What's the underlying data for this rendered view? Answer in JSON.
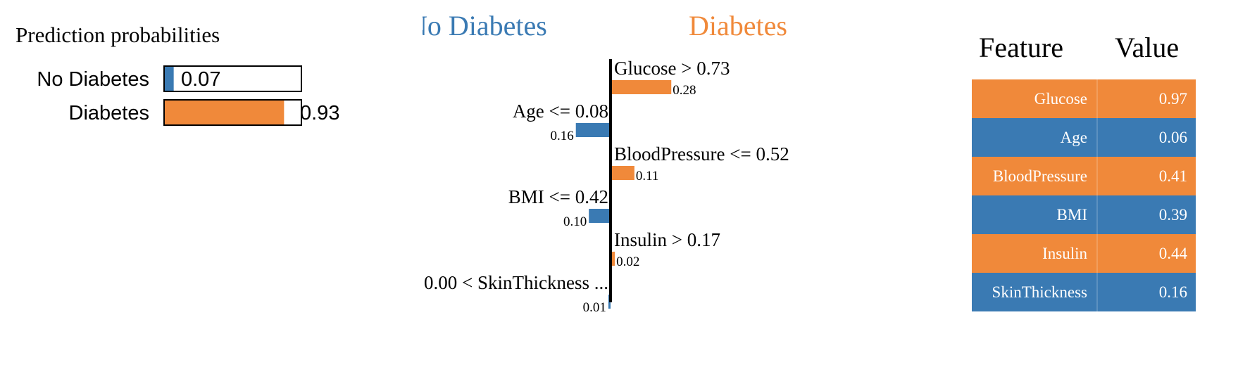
{
  "prediction": {
    "title": "Prediction probabilities",
    "bars": [
      {
        "label": "No Diabetes",
        "value": 0.07,
        "value_label": "0.07",
        "color": "#3a7ab3"
      },
      {
        "label": "Diabetes",
        "value": 0.93,
        "value_label": "0.93",
        "color": "#f0893a"
      }
    ]
  },
  "explanation": {
    "negative_class": "No Diabetes",
    "positive_class": "Diabetes",
    "negative_color": "#3a7ab3",
    "positive_color": "#f0893a",
    "features": [
      {
        "label": "Glucose > 0.73",
        "weight": 0.28,
        "weight_label": "0.28",
        "side": "positive"
      },
      {
        "label": "Age <= 0.08",
        "weight": 0.16,
        "weight_label": "0.16",
        "side": "negative"
      },
      {
        "label": "BloodPressure <= 0.52",
        "weight": 0.11,
        "weight_label": "0.11",
        "side": "positive"
      },
      {
        "label": "BMI <= 0.42",
        "weight": 0.1,
        "weight_label": "0.10",
        "side": "negative"
      },
      {
        "label": "Insulin > 0.17",
        "weight": 0.02,
        "weight_label": "0.02",
        "side": "positive"
      },
      {
        "label": "0.00 < SkinThickness ...",
        "weight": 0.01,
        "weight_label": "0.01",
        "side": "negative"
      }
    ]
  },
  "table": {
    "headers": [
      "Feature",
      "Value"
    ],
    "rows": [
      {
        "feature": "Glucose",
        "value": "0.97",
        "side": "positive"
      },
      {
        "feature": "Age",
        "value": "0.06",
        "side": "negative"
      },
      {
        "feature": "BloodPressure",
        "value": "0.41",
        "side": "positive"
      },
      {
        "feature": "BMI",
        "value": "0.39",
        "side": "negative"
      },
      {
        "feature": "Insulin",
        "value": "0.44",
        "side": "positive"
      },
      {
        "feature": "SkinThickness",
        "value": "0.16",
        "side": "negative"
      }
    ]
  },
  "chart_data": [
    {
      "type": "bar",
      "title": "Prediction probabilities",
      "categories": [
        "No Diabetes",
        "Diabetes"
      ],
      "values": [
        0.07,
        0.93
      ],
      "ylim": [
        0,
        1
      ]
    },
    {
      "type": "bar",
      "categories": [
        "Glucose > 0.73",
        "Age <= 0.08",
        "BloodPressure <= 0.52",
        "BMI <= 0.42",
        "Insulin > 0.17",
        "0.00 < SkinThickness ..."
      ],
      "values": [
        0.28,
        -0.16,
        0.11,
        -0.1,
        0.02,
        -0.01
      ]
    },
    {
      "type": "table",
      "categories": [
        "Glucose",
        "Age",
        "BloodPressure",
        "BMI",
        "Insulin",
        "SkinThickness"
      ],
      "values": [
        0.97,
        0.06,
        0.41,
        0.39,
        0.44,
        0.16
      ]
    }
  ]
}
